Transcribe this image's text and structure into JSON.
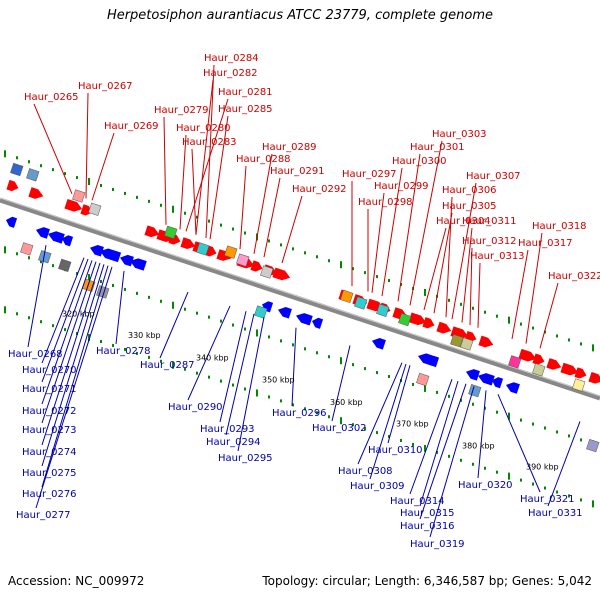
{
  "title": "Herpetosiphon aurantiacus ATCC 23779, complete genome",
  "footer": {
    "accession": "Accession: NC_009972",
    "summary": "Topology: circular; Length: 6,346,587 bp; Genes: 5,042"
  },
  "scale_labels": [
    "320 kbp",
    "330 kbp",
    "340 kbp",
    "350 kbp",
    "360 kbp",
    "370 kbp",
    "380 kbp",
    "390 kbp"
  ],
  "colors": {
    "forward_label": "#cc0000",
    "reverse_label": "#0000aa",
    "forward_gene": "#ff0000",
    "reverse_gene": "#0000ff",
    "backbone": "#888888",
    "tick": "#008800"
  },
  "forward_genes": [
    "Haur_0265",
    "Haur_0267",
    "Haur_0269",
    "Haur_0279",
    "Haur_0280",
    "Haur_0281",
    "Haur_0282",
    "Haur_0283",
    "Haur_0284",
    "Haur_0285",
    "Haur_0288",
    "Haur_0289",
    "Haur_0291",
    "Haur_0292",
    "Haur_0297",
    "Haur_0298",
    "Haur_0299",
    "Haur_0300",
    "Haur_0301",
    "Haur_0303",
    "Haur_0304",
    "Haur_0305",
    "Haur_0306",
    "Haur_0307",
    "Haur_0311",
    "Haur_0312",
    "Haur_0313",
    "Haur_0317",
    "Haur_0318",
    "Haur_0322"
  ],
  "reverse_genes": [
    "Haur_0268",
    "Haur_0270",
    "Haur_0271",
    "Haur_0272",
    "Haur_0273",
    "Haur_0274",
    "Haur_0275",
    "Haur_0276",
    "Haur_0277",
    "Haur_0278",
    "Haur_0287",
    "Haur_0290",
    "Haur_0293",
    "Haur_0294",
    "Haur_0295",
    "Haur_0296",
    "Haur_0302",
    "Haur_0308",
    "Haur_0309",
    "Haur_0310",
    "Haur_0314",
    "Haur_0315",
    "Haur_0316",
    "Haur_0319",
    "Haur_0320",
    "Haur_0321",
    "Haur_0331"
  ]
}
